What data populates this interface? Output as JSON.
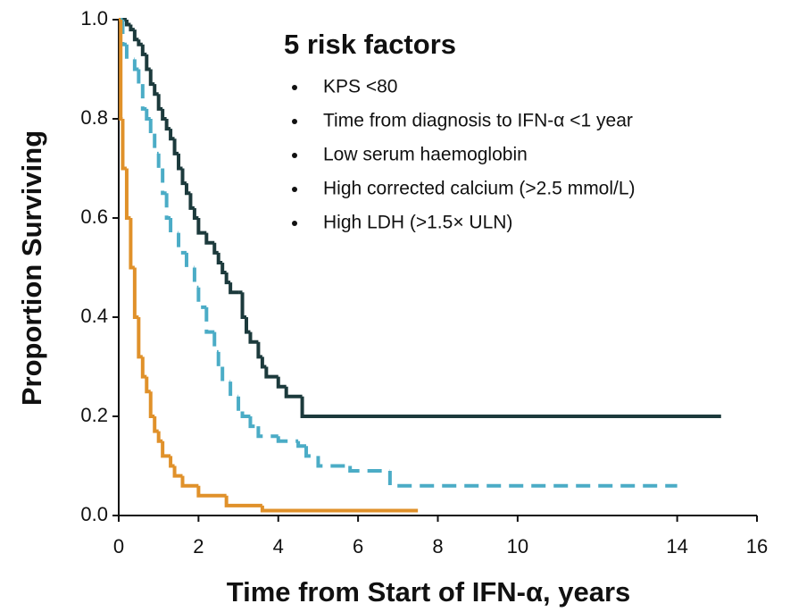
{
  "chart_data": {
    "type": "step-line",
    "title": "5 risk factors",
    "annotations": [
      "KPS <80",
      "Time from diagnosis to IFN-α <1 year",
      "Low serum haemoglobin",
      "High corrected calcium (>2.5 mmol/L)",
      "High LDH (>1.5× ULN)"
    ],
    "x_label": "Time from Start of IFN-α, years",
    "y_label": "Proportion Surviving",
    "xlim": [
      0,
      16
    ],
    "xticks": [
      0,
      2,
      4,
      6,
      8,
      10,
      14,
      16
    ],
    "ylim": [
      0,
      1
    ],
    "yticks": [
      {
        "value": 0,
        "label": "0.0"
      },
      0.2,
      0.4,
      0.6,
      0.8,
      {
        "value": 1,
        "label": "1.0"
      }
    ],
    "series": [
      {
        "color": "#1c3a3c",
        "dashed": false,
        "x": [
          0,
          0.2,
          0.3,
          0.4,
          0.5,
          0.6,
          0.7,
          0.8,
          0.9,
          1.0,
          1.1,
          1.2,
          1.3,
          1.4,
          1.5,
          1.6,
          1.7,
          1.8,
          1.9,
          2.0,
          2.2,
          2.4,
          2.5,
          2.6,
          2.7,
          2.8,
          3.0,
          3.1,
          3.2,
          3.3,
          3.5,
          3.6,
          3.7,
          4.0,
          4.2,
          4.6,
          15.1
        ],
        "values": [
          1.0,
          0.99,
          0.98,
          0.96,
          0.95,
          0.93,
          0.9,
          0.87,
          0.85,
          0.82,
          0.8,
          0.78,
          0.76,
          0.73,
          0.7,
          0.67,
          0.65,
          0.62,
          0.6,
          0.57,
          0.55,
          0.53,
          0.51,
          0.49,
          0.47,
          0.45,
          0.45,
          0.4,
          0.37,
          0.35,
          0.32,
          0.3,
          0.28,
          0.26,
          0.24,
          0.2,
          0.2
        ]
      },
      {
        "color": "#4bacc6",
        "dashed": true,
        "x": [
          0,
          0.1,
          0.2,
          0.4,
          0.5,
          0.6,
          0.7,
          0.8,
          0.9,
          1.0,
          1.1,
          1.2,
          1.3,
          1.5,
          1.7,
          1.9,
          2.0,
          2.2,
          2.4,
          2.5,
          2.6,
          2.8,
          3.0,
          3.1,
          3.3,
          3.5,
          4.0,
          4.5,
          4.7,
          5.0,
          5.8,
          6.8,
          14
        ],
        "values": [
          1.0,
          0.95,
          0.92,
          0.9,
          0.87,
          0.82,
          0.8,
          0.77,
          0.73,
          0.7,
          0.65,
          0.6,
          0.57,
          0.53,
          0.5,
          0.46,
          0.42,
          0.37,
          0.33,
          0.3,
          0.27,
          0.24,
          0.21,
          0.2,
          0.18,
          0.16,
          0.15,
          0.14,
          0.12,
          0.1,
          0.09,
          0.06,
          0.06
        ]
      },
      {
        "color": "#e0912a",
        "dashed": false,
        "x": [
          0,
          0.05,
          0.1,
          0.2,
          0.3,
          0.4,
          0.5,
          0.6,
          0.7,
          0.8,
          0.9,
          1.0,
          1.1,
          1.3,
          1.4,
          1.6,
          2.0,
          2.7,
          3.6,
          7.5
        ],
        "values": [
          1.0,
          0.8,
          0.7,
          0.6,
          0.5,
          0.4,
          0.32,
          0.28,
          0.25,
          0.2,
          0.17,
          0.15,
          0.12,
          0.1,
          0.08,
          0.06,
          0.04,
          0.02,
          0.01,
          0.01
        ]
      }
    ]
  }
}
